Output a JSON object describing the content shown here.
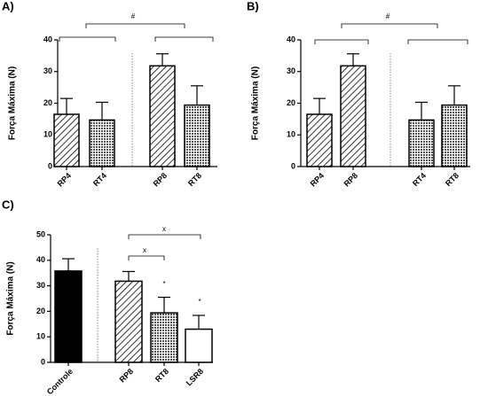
{
  "chart_data": [
    {
      "type": "bar",
      "title": "A)",
      "y_label": "Força Máxima (N)",
      "categories": [
        "RP4",
        "RT4",
        "RP8",
        "RT8"
      ],
      "values": [
        16.5,
        14.7,
        31.8,
        19.4
      ],
      "errors": [
        5,
        5.6,
        3.8,
        6.1
      ],
      "patterns": [
        "hatch",
        "dots",
        "hatch",
        "dots"
      ],
      "ylim": [
        0,
        40
      ],
      "yticks": [
        0,
        10,
        20,
        30,
        40
      ],
      "annotations": [
        "#"
      ]
    },
    {
      "type": "bar",
      "title": "B)",
      "y_label": "Força Máxima (N)",
      "categories": [
        "RP4",
        "RP8",
        "RT4",
        "RT8"
      ],
      "values": [
        16.5,
        31.8,
        14.7,
        19.4
      ],
      "errors": [
        5,
        3.8,
        5.6,
        6.1
      ],
      "patterns": [
        "hatch",
        "hatch",
        "dots",
        "dots"
      ],
      "ylim": [
        0,
        40
      ],
      "yticks": [
        0,
        10,
        20,
        30,
        40
      ],
      "annotations": [
        "#"
      ]
    },
    {
      "type": "bar",
      "title": "C)",
      "y_label": "Força Máxima (N)",
      "categories": [
        "Controle",
        "RP8",
        "RT8",
        "LSR8"
      ],
      "values": [
        35.8,
        31.8,
        19.4,
        13
      ],
      "errors": [
        4.8,
        3.8,
        6.1,
        5.4
      ],
      "patterns": [
        "solid",
        "hatch",
        "dots",
        "white"
      ],
      "ylim": [
        0,
        50
      ],
      "yticks": [
        0,
        10,
        20,
        30,
        40,
        50
      ],
      "annotations": [
        "x",
        "x",
        "*",
        "*"
      ]
    }
  ]
}
